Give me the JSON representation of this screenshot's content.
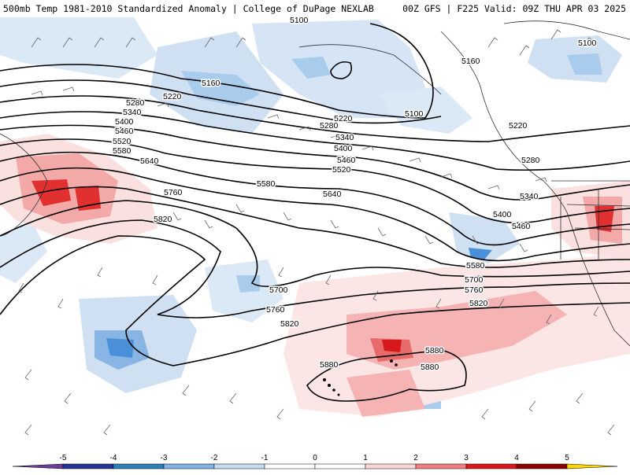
{
  "header": {
    "left_title": "500mb Temp 1981-2010 Standardized Anomaly | College of DuPage NEXLAB",
    "right_title": "00Z GFS | F225 Valid: 09Z THU APR 03 2025"
  },
  "legend": {
    "ticks": [
      "-5",
      "-4",
      "-3",
      "-2",
      "-1",
      "0",
      "1",
      "2",
      "3",
      "4",
      "5"
    ],
    "colors": [
      "#6a3d9a",
      "#253494",
      "#2c7fb8",
      "#7fb3e0",
      "#c6dbef",
      "#ffffff",
      "#ffffff",
      "#fcd5d5",
      "#f08080",
      "#d7191c",
      "#8b0000",
      "#ffd700"
    ]
  },
  "contour_labels": [
    "5100",
    "5160",
    "5220",
    "5280",
    "5340",
    "5400",
    "5460",
    "5520",
    "5580",
    "5640",
    "5700",
    "5760",
    "5820",
    "5880"
  ],
  "map_labels": [
    {
      "text": "5160"
    },
    {
      "text": "5220"
    },
    {
      "text": "5280"
    },
    {
      "text": "5340"
    },
    {
      "text": "5400"
    },
    {
      "text": "5460"
    },
    {
      "text": "5520"
    },
    {
      "text": "5580"
    },
    {
      "text": "5640"
    },
    {
      "text": "5760"
    },
    {
      "text": "5820"
    },
    {
      "text": "5100"
    },
    {
      "text": "5160"
    },
    {
      "text": "5100"
    },
    {
      "text": "5220"
    },
    {
      "text": "5280"
    },
    {
      "text": "5340"
    },
    {
      "text": "5400"
    },
    {
      "text": "5460"
    },
    {
      "text": "5520"
    },
    {
      "text": "5580"
    },
    {
      "text": "5640"
    },
    {
      "text": "5220"
    },
    {
      "text": "5280"
    },
    {
      "text": "5340"
    },
    {
      "text": "5400"
    },
    {
      "text": "5460"
    },
    {
      "text": "5580"
    },
    {
      "text": "5700"
    },
    {
      "text": "5760"
    },
    {
      "text": "5820"
    },
    {
      "text": "5700"
    },
    {
      "text": "5760"
    },
    {
      "text": "5820"
    },
    {
      "text": "5880"
    },
    {
      "text": "5880"
    },
    {
      "text": "5880"
    },
    {
      "text": "5100"
    }
  ]
}
